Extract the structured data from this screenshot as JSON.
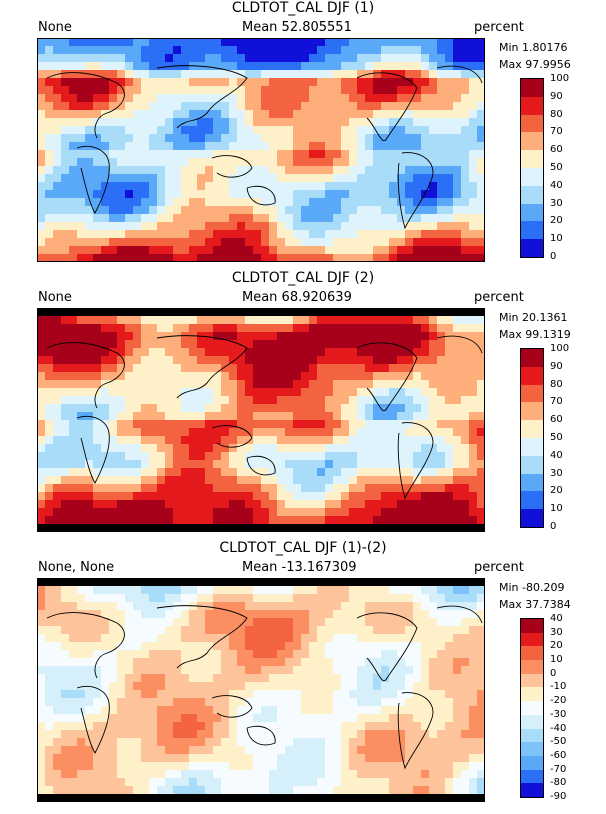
{
  "panels": [
    {
      "title": "CLDTOT_CAL DJF (1)",
      "left_label": "None",
      "mean_label": "Mean 52.805551",
      "units": "percent",
      "min_label": "Min 1.80176",
      "max_label": "Max 97.9956",
      "colorbar_ticks": [
        "100",
        "90",
        "80",
        "70",
        "60",
        "50",
        "40",
        "30",
        "20",
        "10",
        "0"
      ],
      "colorbar_colors": [
        "#a6001a",
        "#e41a1c",
        "#f4633f",
        "#fdae7b",
        "#fef0c8",
        "#def3fb",
        "#a8dcf8",
        "#5aa8f8",
        "#2b6ff6",
        "#1010d8"
      ],
      "map_zonal_profile": [
        8,
        15,
        30,
        72,
        68,
        60,
        50,
        42,
        40,
        55,
        48,
        40,
        35,
        40,
        50,
        62,
        72,
        88
      ]
    },
    {
      "title": "CLDTOT_CAL DJF (2)",
      "left_label": "None",
      "mean_label": "Mean 68.920639",
      "units": "percent",
      "min_label": "Min 20.1361",
      "max_label": "Max 99.1319",
      "colorbar_ticks": [
        "100",
        "90",
        "80",
        "70",
        "60",
        "50",
        "40",
        "30",
        "20",
        "10",
        "0"
      ],
      "colorbar_colors": [
        "#a6001a",
        "#e41a1c",
        "#f4633f",
        "#fdae7b",
        "#fef0c8",
        "#def3fb",
        "#a8dcf8",
        "#5aa8f8",
        "#2b6ff6",
        "#1010d8"
      ],
      "map_zonal_profile": [
        50,
        78,
        92,
        88,
        80,
        72,
        65,
        58,
        55,
        72,
        62,
        52,
        48,
        58,
        70,
        80,
        90,
        96
      ]
    },
    {
      "title": "CLDTOT_CAL DJF (1)-(2)",
      "left_label": "None, None",
      "mean_label": "Mean -13.167309",
      "units": "percent",
      "min_label": "Min -80.209",
      "max_label": "Max 37.7384",
      "colorbar_ticks": [
        "40",
        "30",
        "20",
        "10",
        "0",
        "-10",
        "-20",
        "-30",
        "-40",
        "-50",
        "-60",
        "-70",
        "-80",
        "-90"
      ],
      "colorbar_colors": [
        "#a6001a",
        "#e41a1c",
        "#f4633f",
        "#fb8f62",
        "#fdc39a",
        "#fef0c8",
        "#f6fbff",
        "#d6f0fb",
        "#a8dcf8",
        "#7dc2f8",
        "#5aa8f8",
        "#2b6ff6",
        "#1010d8"
      ],
      "map_zonal_profile": [
        -30,
        -20,
        -10,
        -5,
        -5,
        -10,
        -12,
        -15,
        -15,
        -18,
        -14,
        -12,
        -10,
        -12,
        -15,
        -20,
        -25,
        -20
      ]
    }
  ],
  "chart_data": [
    {
      "type": "heatmap",
      "title": "CLDTOT_CAL DJF (1)",
      "units": "percent",
      "mean": 52.805551,
      "min": 1.80176,
      "max": 97.9956,
      "colorbar_levels": [
        0,
        10,
        20,
        30,
        40,
        50,
        60,
        70,
        80,
        90,
        100
      ]
    },
    {
      "type": "heatmap",
      "title": "CLDTOT_CAL DJF (2)",
      "units": "percent",
      "mean": 68.920639,
      "min": 20.1361,
      "max": 99.1319,
      "colorbar_levels": [
        0,
        10,
        20,
        30,
        40,
        50,
        60,
        70,
        80,
        90,
        100
      ]
    },
    {
      "type": "heatmap",
      "title": "CLDTOT_CAL DJF (1)-(2)",
      "units": "percent",
      "mean": -13.167309,
      "min": -80.209,
      "max": 37.7384,
      "colorbar_levels": [
        -90,
        -80,
        -70,
        -60,
        -50,
        -40,
        -30,
        -20,
        -10,
        0,
        10,
        20,
        30,
        40
      ]
    }
  ]
}
